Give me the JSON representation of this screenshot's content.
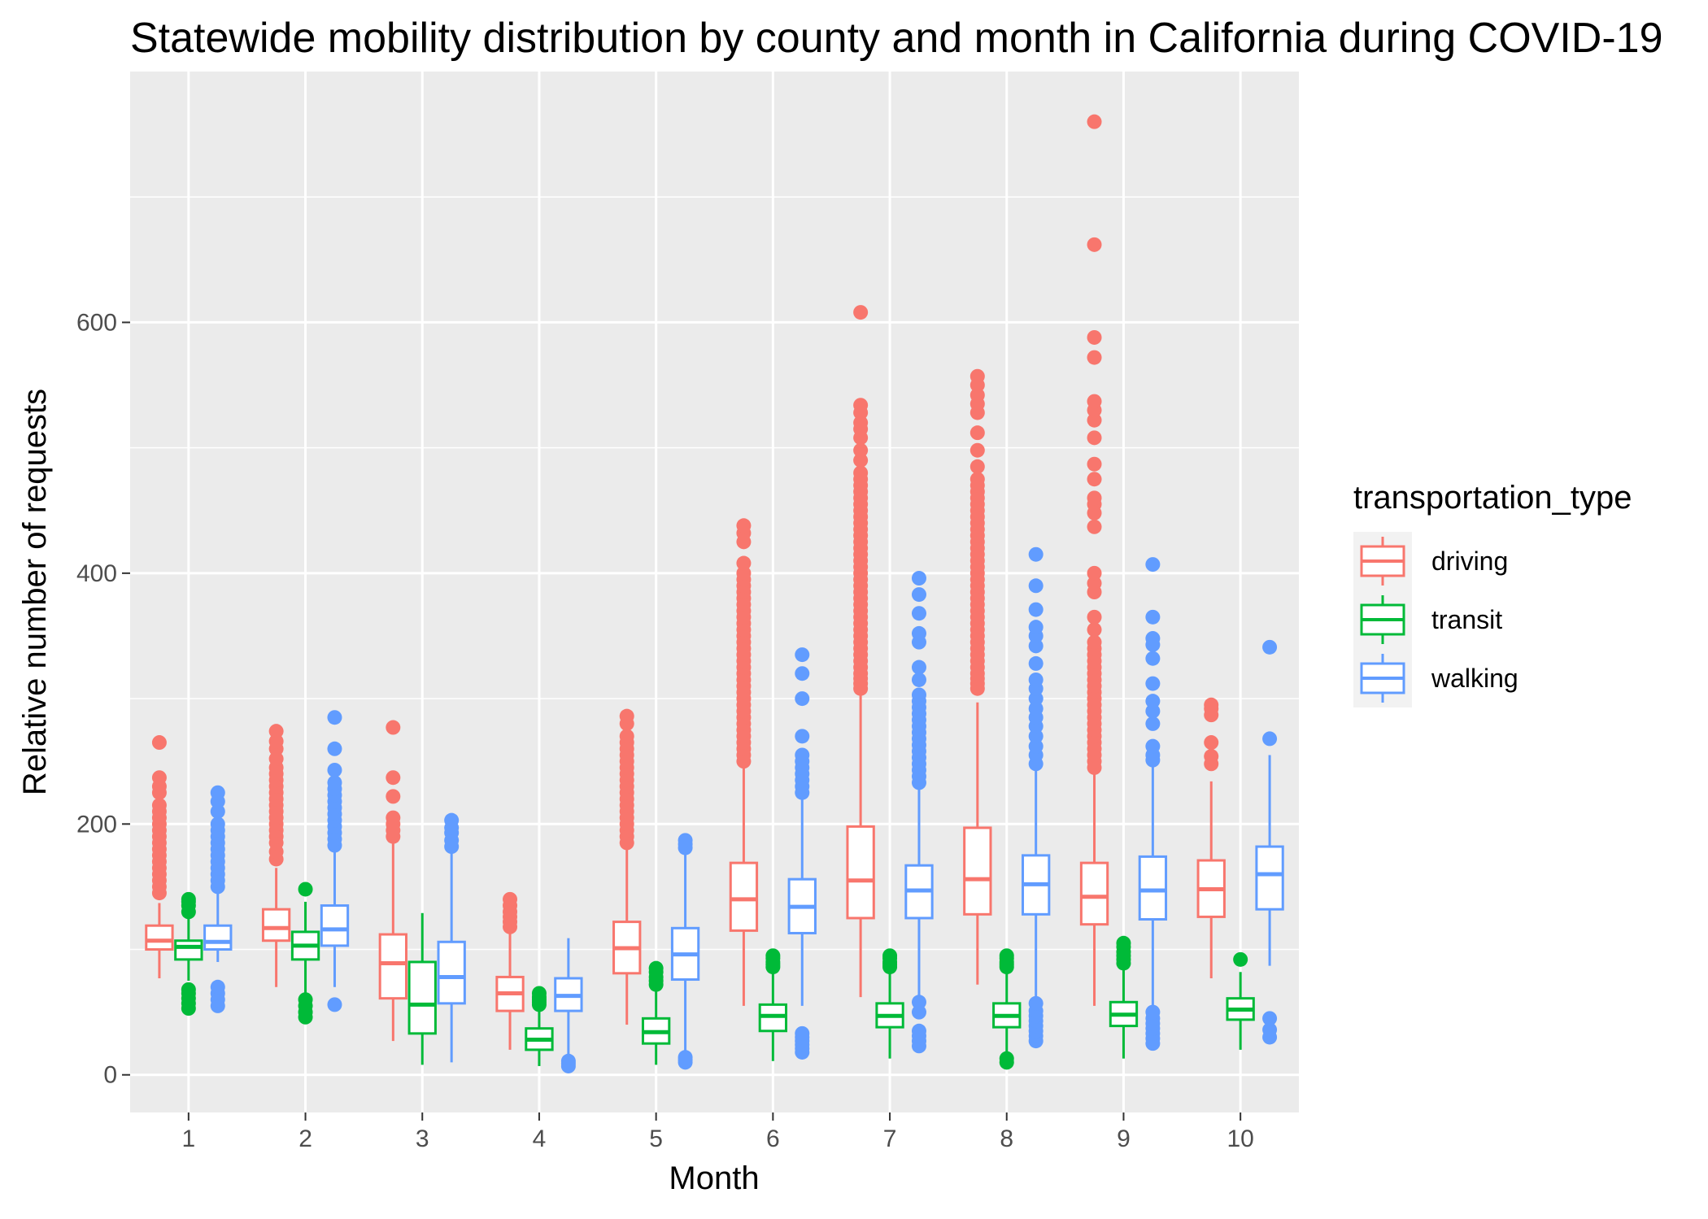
{
  "chart_data": {
    "type": "boxplot",
    "title": "Statewide mobility distribution by county and month in California during COVID-19",
    "xlabel": "Month",
    "ylabel": "Relative number of requests",
    "categories": [
      "1",
      "2",
      "3",
      "4",
      "5",
      "6",
      "7",
      "8",
      "9",
      "10"
    ],
    "yticks": [
      0,
      200,
      400,
      600
    ],
    "ylim": [
      -30,
      800
    ],
    "grid": true,
    "legend": {
      "title": "transportation_type",
      "position": "right"
    },
    "series": [
      {
        "name": "driving",
        "color": "#F8766D",
        "boxes": [
          {
            "min": 77,
            "q1": 100,
            "median": 107,
            "q3": 119,
            "max": 137,
            "outliers": [
              145,
              150,
              155,
              160,
              165,
              170,
              175,
              180,
              185,
              190,
              195,
              200,
              205,
              210,
              215,
              225,
              230,
              237,
              265
            ]
          },
          {
            "min": 70,
            "q1": 107,
            "median": 117,
            "q3": 132,
            "max": 165,
            "outliers": [
              172,
              178,
              185,
              190,
              195,
              200,
              205,
              210,
              215,
              220,
              225,
              230,
              235,
              240,
              245,
              252,
              260,
              266,
              274
            ]
          },
          {
            "min": 27,
            "q1": 61,
            "median": 89,
            "q3": 112,
            "max": 187,
            "outliers": [
              190,
              195,
              200,
              205,
              222,
              237,
              277
            ]
          },
          {
            "min": 20,
            "q1": 51,
            "median": 65,
            "q3": 78,
            "max": 116,
            "outliers": [
              118,
              122,
              126,
              130,
              135,
              140
            ]
          },
          {
            "min": 40,
            "q1": 81,
            "median": 101,
            "q3": 122,
            "max": 182,
            "outliers": [
              185,
              190,
              195,
              200,
              205,
              210,
              215,
              220,
              225,
              230,
              235,
              240,
              245,
              250,
              255,
              260,
              265,
              270,
              280,
              286
            ]
          },
          {
            "min": 55,
            "q1": 115,
            "median": 140,
            "q3": 169,
            "max": 248,
            "outliers": [
              250,
              255,
              260,
              265,
              270,
              275,
              280,
              285,
              290,
              295,
              300,
              305,
              310,
              315,
              320,
              325,
              330,
              335,
              340,
              345,
              350,
              355,
              360,
              365,
              370,
              375,
              380,
              385,
              390,
              395,
              400,
              408,
              425,
              432,
              438
            ]
          },
          {
            "min": 62,
            "q1": 125,
            "median": 155,
            "q3": 198,
            "max": 305,
            "outliers": [
              308,
              312,
              316,
              320,
              325,
              330,
              335,
              340,
              345,
              350,
              355,
              360,
              365,
              370,
              375,
              380,
              385,
              390,
              395,
              400,
              405,
              410,
              415,
              420,
              425,
              430,
              435,
              440,
              445,
              450,
              455,
              460,
              465,
              470,
              475,
              480,
              490,
              498,
              508,
              515,
              520,
              528,
              534,
              608
            ]
          },
          {
            "min": 72,
            "q1": 128,
            "median": 156,
            "q3": 197,
            "max": 297,
            "outliers": [
              308,
              312,
              316,
              320,
              325,
              330,
              335,
              340,
              345,
              350,
              355,
              360,
              365,
              370,
              375,
              380,
              385,
              390,
              395,
              400,
              405,
              410,
              415,
              420,
              425,
              430,
              435,
              440,
              445,
              450,
              455,
              460,
              465,
              470,
              475,
              485,
              498,
              512,
              528,
              535,
              542,
              550,
              557
            ]
          },
          {
            "min": 55,
            "q1": 120,
            "median": 142,
            "q3": 169,
            "max": 240,
            "outliers": [
              245,
              250,
              255,
              260,
              265,
              270,
              275,
              280,
              285,
              290,
              295,
              300,
              305,
              310,
              315,
              320,
              325,
              330,
              335,
              340,
              345,
              355,
              365,
              385,
              392,
              400,
              437,
              448,
              455,
              460,
              475,
              487,
              508,
              522,
              530,
              537,
              572,
              588,
              662,
              760
            ]
          },
          {
            "min": 77,
            "q1": 126,
            "median": 148,
            "q3": 171,
            "max": 234,
            "outliers": [
              248,
              254,
              265,
              287,
              292,
              295
            ]
          }
        ]
      },
      {
        "name": "transit",
        "color": "#00BA38",
        "boxes": [
          {
            "min": 75,
            "q1": 92,
            "median": 102,
            "q3": 107,
            "max": 125,
            "outliers": [
              53,
              57,
              61,
              65,
              68,
              130,
              135,
              138,
              140
            ]
          },
          {
            "min": 65,
            "q1": 92,
            "median": 103,
            "q3": 114,
            "max": 138,
            "outliers": [
              46,
              50,
              55,
              60,
              148
            ]
          },
          {
            "min": 8,
            "q1": 33,
            "median": 56,
            "q3": 90,
            "max": 129,
            "outliers": []
          },
          {
            "min": 7,
            "q1": 20,
            "median": 28,
            "q3": 37,
            "max": 53,
            "outliers": [
              56,
              58,
              60,
              62,
              65
            ]
          },
          {
            "min": 8,
            "q1": 25,
            "median": 34,
            "q3": 45,
            "max": 70,
            "outliers": [
              72,
              75,
              78,
              82,
              85
            ]
          },
          {
            "min": 11,
            "q1": 35,
            "median": 47,
            "q3": 56,
            "max": 83,
            "outliers": [
              86,
              88,
              90,
              93,
              95
            ]
          },
          {
            "min": 13,
            "q1": 38,
            "median": 47,
            "q3": 57,
            "max": 85,
            "outliers": [
              86,
              88,
              90,
              93,
              95
            ]
          },
          {
            "min": 18,
            "q1": 38,
            "median": 47,
            "q3": 57,
            "max": 83,
            "outliers": [
              10,
              13,
              86,
              88,
              90,
              93,
              95
            ]
          },
          {
            "min": 13,
            "q1": 39,
            "median": 48,
            "q3": 58,
            "max": 87,
            "outliers": [
              89,
              92,
              95,
              98,
              102,
              105
            ]
          },
          {
            "min": 20,
            "q1": 44,
            "median": 52,
            "q3": 61,
            "max": 82,
            "outliers": [
              92
            ]
          }
        ]
      },
      {
        "name": "walking",
        "color": "#619CFF",
        "boxes": [
          {
            "min": 90,
            "q1": 100,
            "median": 106,
            "q3": 119,
            "max": 145,
            "outliers": [
              55,
              60,
              65,
              70,
              150,
              155,
              160,
              165,
              170,
              175,
              180,
              185,
              190,
              195,
              200,
              210,
              218,
              225
            ]
          },
          {
            "min": 70,
            "q1": 103,
            "median": 116,
            "q3": 135,
            "max": 180,
            "outliers": [
              56,
              183,
              188,
              193,
              198,
              203,
              208,
              213,
              218,
              223,
              228,
              233,
              243,
              260,
              285
            ]
          },
          {
            "min": 10,
            "q1": 57,
            "median": 78,
            "q3": 106,
            "max": 180,
            "outliers": [
              182,
              187,
              193,
              197,
              203
            ]
          },
          {
            "min": 12,
            "q1": 51,
            "median": 63,
            "q3": 77,
            "max": 109,
            "outliers": [
              7,
              9,
              11
            ]
          },
          {
            "min": 18,
            "q1": 76,
            "median": 96,
            "q3": 117,
            "max": 178,
            "outliers": [
              10,
              12,
              14,
              181,
              184,
              187
            ]
          },
          {
            "min": 55,
            "q1": 113,
            "median": 134,
            "q3": 156,
            "max": 220,
            "outliers": [
              18,
              21,
              24,
              27,
              30,
              33,
              225,
              230,
              235,
              240,
              245,
              250,
              255,
              270,
              300,
              320,
              335
            ]
          },
          {
            "min": 55,
            "q1": 125,
            "median": 147,
            "q3": 167,
            "max": 230,
            "outliers": [
              23,
              27,
              31,
              35,
              50,
              58,
              233,
              238,
              243,
              248,
              253,
              258,
              263,
              268,
              273,
              278,
              283,
              288,
              293,
              298,
              303,
              315,
              325,
              345,
              352,
              368,
              383,
              396
            ]
          },
          {
            "min": 60,
            "q1": 128,
            "median": 152,
            "q3": 175,
            "max": 245,
            "outliers": [
              27,
              31,
              35,
              39,
              43,
              47,
              51,
              57,
              248,
              255,
              262,
              270,
              278,
              285,
              292,
              300,
              308,
              315,
              328,
              342,
              350,
              357,
              371,
              390,
              415
            ]
          },
          {
            "min": 50,
            "q1": 124,
            "median": 147,
            "q3": 174,
            "max": 248,
            "outliers": [
              25,
              29,
              33,
              37,
              41,
              45,
              50,
              251,
              255,
              262,
              280,
              290,
              298,
              312,
              332,
              343,
              348,
              365,
              407
            ]
          },
          {
            "min": 87,
            "q1": 132,
            "median": 160,
            "q3": 182,
            "max": 255,
            "outliers": [
              30,
              36,
              45,
              268,
              341
            ]
          }
        ]
      }
    ]
  }
}
